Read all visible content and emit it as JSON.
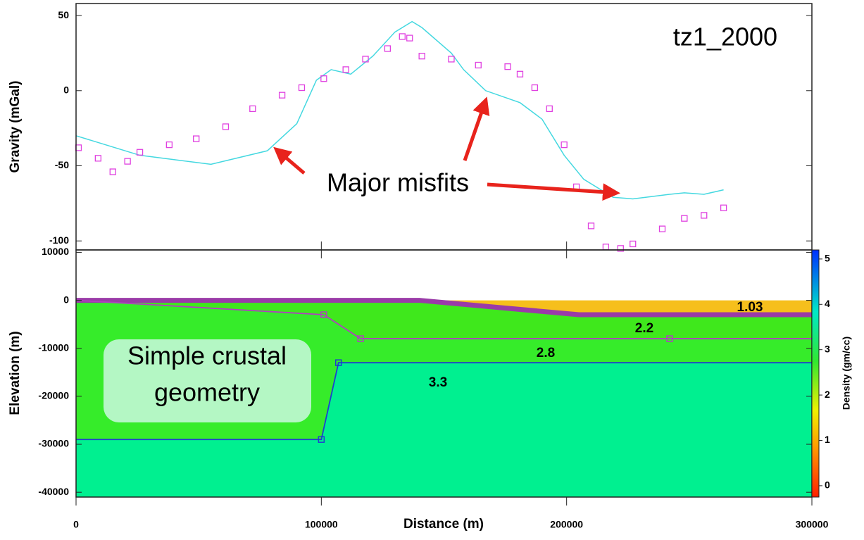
{
  "chart_data": [
    {
      "type": "line",
      "title": "tz1_2000",
      "ylabel": "Gravity (mGal)",
      "annotation": "Major misfits",
      "xlim": [
        0,
        300000
      ],
      "ylim": [
        -106,
        58
      ],
      "yticks": [
        -100,
        -50,
        0,
        50
      ],
      "series": [
        {
          "color": "#44d8e0",
          "style": "line",
          "x": [
            0,
            26000,
            55000,
            78000,
            90000,
            98000,
            104000,
            112000,
            121000,
            130000,
            137000,
            141000,
            153000,
            158000,
            167000,
            181000,
            190000,
            199000,
            207000,
            219000,
            227000,
            242000,
            248000,
            256000,
            264000
          ],
          "values": [
            -30,
            -43,
            -49,
            -40,
            -22,
            7,
            14,
            11,
            23,
            39,
            46,
            42,
            25,
            14,
            0,
            -8,
            -19,
            -43,
            -59,
            -71,
            -72,
            -69,
            -68,
            -69,
            -66
          ]
        },
        {
          "color": "#e040e0",
          "style": "markers",
          "x": [
            1000,
            9000,
            15000,
            21000,
            26000,
            38000,
            49000,
            61000,
            72000,
            84000,
            92000,
            101000,
            110000,
            118000,
            127000,
            133000,
            136000,
            141000,
            153000,
            164000,
            176000,
            181000,
            187000,
            193000,
            199000,
            204000,
            210000,
            216000,
            222000,
            227000,
            239000,
            248000,
            256000,
            264000
          ],
          "values": [
            -38,
            -45,
            -54,
            -47,
            -41,
            -36,
            -32,
            -24,
            -12,
            -3,
            2,
            8,
            14,
            21,
            28,
            36,
            35,
            23,
            21,
            17,
            16,
            11,
            2,
            -12,
            -36,
            -64,
            -90,
            -104,
            -105,
            -102,
            -92,
            -85,
            -83,
            -78
          ]
        }
      ]
    },
    {
      "type": "model",
      "xlabel": "Distance (m)",
      "ylabel": "Elevation (m)",
      "annotation": [
        "Simple crustal",
        "geometry"
      ],
      "xlim": [
        0,
        300000
      ],
      "ylim": [
        -41000,
        10500
      ],
      "xticks": [
        0,
        100000,
        200000,
        300000
      ],
      "yticks": [
        -40000,
        -30000,
        -20000,
        -10000,
        0,
        10000
      ],
      "layers": [
        {
          "density": 1.03,
          "color": "#f6bf1c",
          "x": [
            0,
            300000
          ],
          "top": [
            0,
            0
          ]
        },
        {
          "density": 2.2,
          "color": "#3fe81c",
          "line_color": "#9a3aa8",
          "x": [
            0,
            140000,
            205000,
            265000,
            300000
          ],
          "top": [
            0,
            0,
            -3000,
            -3000,
            -3000
          ]
        },
        {
          "density": 2.8,
          "color": "#36ec2a",
          "line_color": "#b040c0",
          "x": [
            0,
            101000,
            116000,
            242000,
            300000
          ],
          "top": [
            0,
            -3000,
            -8000,
            -8000,
            -8000
          ]
        },
        {
          "density": 3.3,
          "color": "#00f090",
          "line_color": "#1f3fd0",
          "x": [
            0,
            100000,
            107000,
            300000
          ],
          "top": [
            -29000,
            -29000,
            -13000,
            -13000
          ]
        }
      ],
      "colorbar": {
        "label": "Density (gm/cc)",
        "lim": [
          -0.25,
          5.2
        ],
        "ticks": [
          0,
          1,
          2,
          3,
          4,
          5
        ]
      }
    }
  ]
}
